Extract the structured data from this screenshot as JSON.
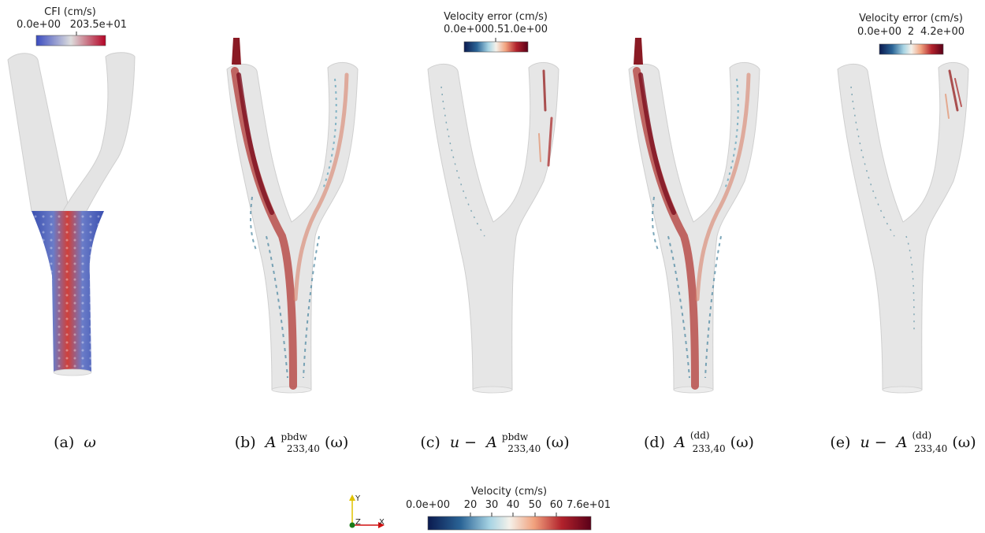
{
  "panels": {
    "a": {
      "colorbar": {
        "title": "CFI (cm/s)",
        "tick_labels": [
          "0.0e+00",
          "20",
          "3.5e+01"
        ],
        "gradient": "coolwarm"
      },
      "caption": {
        "label": "(a)",
        "math": "ω"
      }
    },
    "b": {
      "caption": {
        "label": "(b)",
        "base": "A",
        "sup": "pbdw",
        "sub": "233,40",
        "arg": "(ω)",
        "prefix": ""
      }
    },
    "c": {
      "colorbar": {
        "title": "Velocity error (cm/s)",
        "tick_labels": [
          "0.0e+00",
          "0.5",
          "1.0e+00"
        ],
        "gradient": "rdbu"
      },
      "caption": {
        "label": "(c)",
        "base": "A",
        "sup": "pbdw",
        "sub": "233,40",
        "arg": "(ω)",
        "prefix": "u −"
      }
    },
    "d": {
      "caption": {
        "label": "(d)",
        "base": "A",
        "sup": "(dd)",
        "sub": "233,40",
        "arg": "(ω)",
        "prefix": ""
      }
    },
    "e": {
      "colorbar": {
        "title": "Velocity error (cm/s)",
        "tick_labels": [
          "0.0e+00",
          "2",
          "4.2e+00"
        ],
        "gradient": "rdbu"
      },
      "caption": {
        "label": "(e)",
        "base": "A",
        "sup": "(dd)",
        "sub": "233,40",
        "arg": "(ω)",
        "prefix": "u −"
      }
    }
  },
  "main_colorbar": {
    "title": "Velocity (cm/s)",
    "tick_labels": [
      "0.0e+00",
      "20",
      "30",
      "40",
      "50",
      "60",
      "7.6e+01"
    ],
    "gradient": "rdbu"
  },
  "orientation_axes": {
    "y": "Y",
    "z": "Z",
    "x": "X",
    "colors": {
      "y": "#e0c200",
      "z": "#1a7a1a",
      "x": "#d01010"
    }
  },
  "colors": {
    "vessel_fill": "#e4e4e4",
    "vessel_edge": "#c8c8c8",
    "cfi_low": "#3a4fb0",
    "cfi_high": "#c0302a"
  }
}
